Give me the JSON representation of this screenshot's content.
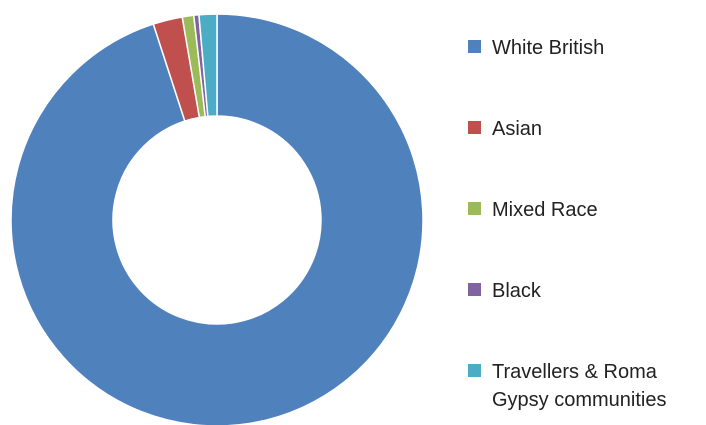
{
  "chart_data": {
    "type": "donut",
    "categories": [
      "White British",
      "Asian",
      "Mixed Race",
      "Black",
      "Travellers & Roma Gypsy communities"
    ],
    "values": [
      95.0,
      2.3,
      0.9,
      0.4,
      1.4
    ],
    "value_unit": "percent",
    "colors": [
      "#4f81bd",
      "#c0504d",
      "#9bbb59",
      "#8064a2",
      "#4bacc6"
    ],
    "legend_position": "right"
  },
  "legend": {
    "items": [
      {
        "label": "White British",
        "color": "#4f81bd"
      },
      {
        "label": "Asian",
        "color": "#c0504d"
      },
      {
        "label": "Mixed Race",
        "color": "#9bbb59"
      },
      {
        "label": "Black",
        "color": "#8064a2"
      },
      {
        "label": "Travellers & Roma Gypsy communities",
        "color": "#4bacc6"
      }
    ]
  }
}
